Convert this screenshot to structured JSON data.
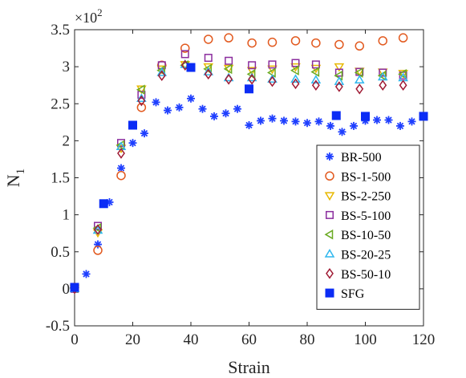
{
  "chart_data": {
    "type": "scatter",
    "xlabel": "Strain",
    "ylabel": "N",
    "ylabel_sub": "1",
    "multiplier": {
      "base": "×10",
      "exp": "2"
    },
    "xlim": [
      0,
      120
    ],
    "ylim": [
      -0.5,
      3.5
    ],
    "xticks": [
      0,
      20,
      40,
      60,
      80,
      100,
      120
    ],
    "yticks": [
      -0.5,
      0,
      0.5,
      1,
      1.5,
      2,
      2.5,
      3,
      3.5
    ],
    "xtick_labels": [
      "0",
      "20",
      "40",
      "60",
      "80",
      "100",
      "120"
    ],
    "ytick_labels": [
      "-0.5",
      "0",
      "0.5",
      "1",
      "1.5",
      "2",
      "2.5",
      "3",
      "3.5"
    ],
    "grid": false,
    "legend_position": "lower-right",
    "series": [
      {
        "name": "BR-500",
        "marker": "asterisk",
        "color": "#1f3fff",
        "points": [
          [
            0,
            0
          ],
          [
            4,
            0.2
          ],
          [
            8,
            0.6
          ],
          [
            12,
            1.17
          ],
          [
            16,
            1.63
          ],
          [
            20,
            1.97
          ],
          [
            24,
            2.1
          ],
          [
            28,
            2.52
          ],
          [
            32,
            2.41
          ],
          [
            36,
            2.45
          ],
          [
            40,
            2.57
          ],
          [
            44,
            2.43
          ],
          [
            48,
            2.33
          ],
          [
            52,
            2.37
          ],
          [
            56,
            2.43
          ],
          [
            60,
            2.21
          ],
          [
            64,
            2.27
          ],
          [
            68,
            2.3
          ],
          [
            72,
            2.27
          ],
          [
            76,
            2.26
          ],
          [
            80,
            2.24
          ],
          [
            84,
            2.26
          ],
          [
            88,
            2.2
          ],
          [
            92,
            2.12
          ],
          [
            96,
            2.2
          ],
          [
            100,
            2.27
          ],
          [
            104,
            2.28
          ],
          [
            108,
            2.28
          ],
          [
            112,
            2.2
          ],
          [
            116,
            2.26
          ]
        ]
      },
      {
        "name": "BS-1-500",
        "marker": "circle",
        "color": "#e2591e",
        "points": [
          [
            0,
            0.02
          ],
          [
            8,
            0.52
          ],
          [
            16,
            1.53
          ],
          [
            23,
            2.45
          ],
          [
            30,
            3.02
          ],
          [
            38,
            3.25
          ],
          [
            46,
            3.37
          ],
          [
            53,
            3.39
          ],
          [
            61,
            3.32
          ],
          [
            68,
            3.33
          ],
          [
            76,
            3.35
          ],
          [
            83,
            3.32
          ],
          [
            91,
            3.3
          ],
          [
            98,
            3.28
          ],
          [
            106,
            3.35
          ],
          [
            113,
            3.39
          ]
        ]
      },
      {
        "name": "BS-2-250",
        "marker": "triangle-down",
        "color": "#e8b800",
        "points": [
          [
            0,
            0.01
          ],
          [
            8,
            0.76
          ],
          [
            16,
            1.9
          ],
          [
            23,
            2.7
          ],
          [
            30,
            2.97
          ],
          [
            38,
            3.03
          ],
          [
            46,
            3.0
          ],
          [
            53,
            2.98
          ],
          [
            61,
            2.95
          ],
          [
            68,
            2.97
          ],
          [
            76,
            3.0
          ],
          [
            83,
            2.98
          ],
          [
            91,
            3.0
          ],
          [
            98,
            2.94
          ],
          [
            106,
            2.93
          ],
          [
            113,
            2.91
          ]
        ]
      },
      {
        "name": "BS-5-100",
        "marker": "square",
        "color": "#8b2d9e",
        "points": [
          [
            0,
            0.0
          ],
          [
            8,
            0.85
          ],
          [
            16,
            1.97
          ],
          [
            23,
            2.62
          ],
          [
            30,
            3.02
          ],
          [
            38,
            3.17
          ],
          [
            46,
            3.12
          ],
          [
            53,
            3.08
          ],
          [
            61,
            3.02
          ],
          [
            68,
            3.03
          ],
          [
            76,
            3.05
          ],
          [
            83,
            3.03
          ],
          [
            91,
            2.92
          ],
          [
            98,
            2.93
          ],
          [
            106,
            2.92
          ],
          [
            113,
            2.88
          ]
        ]
      },
      {
        "name": "BS-10-50",
        "marker": "triangle-left",
        "color": "#6aaa22",
        "points": [
          [
            0,
            0.01
          ],
          [
            8,
            0.82
          ],
          [
            16,
            1.94
          ],
          [
            23,
            2.69
          ],
          [
            30,
            2.95
          ],
          [
            38,
            3.02
          ],
          [
            46,
            2.97
          ],
          [
            53,
            2.97
          ],
          [
            61,
            2.9
          ],
          [
            68,
            2.92
          ],
          [
            76,
            2.95
          ],
          [
            83,
            2.93
          ],
          [
            91,
            2.88
          ],
          [
            98,
            2.92
          ],
          [
            106,
            2.88
          ],
          [
            113,
            2.9
          ]
        ]
      },
      {
        "name": "BS-20-25",
        "marker": "triangle-up",
        "color": "#2fb7ee",
        "points": [
          [
            0,
            0.0
          ],
          [
            8,
            0.79
          ],
          [
            16,
            1.92
          ],
          [
            23,
            2.57
          ],
          [
            30,
            2.92
          ],
          [
            38,
            3.03
          ],
          [
            46,
            2.93
          ],
          [
            53,
            2.85
          ],
          [
            61,
            2.85
          ],
          [
            68,
            2.83
          ],
          [
            76,
            2.83
          ],
          [
            83,
            2.82
          ],
          [
            91,
            2.8
          ],
          [
            98,
            2.82
          ],
          [
            106,
            2.86
          ],
          [
            113,
            2.85
          ]
        ]
      },
      {
        "name": "BS-50-10",
        "marker": "diamond",
        "color": "#a01c35",
        "points": [
          [
            0,
            0.0
          ],
          [
            8,
            0.8
          ],
          [
            16,
            1.83
          ],
          [
            23,
            2.54
          ],
          [
            30,
            2.88
          ],
          [
            38,
            3.02
          ],
          [
            46,
            2.9
          ],
          [
            53,
            2.83
          ],
          [
            61,
            2.83
          ],
          [
            68,
            2.8
          ],
          [
            76,
            2.77
          ],
          [
            83,
            2.75
          ],
          [
            91,
            2.73
          ],
          [
            98,
            2.7
          ],
          [
            106,
            2.75
          ],
          [
            113,
            2.75
          ]
        ]
      },
      {
        "name": "SFG",
        "marker": "filled-square",
        "color": "#0b2cf5",
        "points": [
          [
            0,
            0.02
          ],
          [
            10,
            1.15
          ],
          [
            20,
            2.21
          ],
          [
            40,
            2.99
          ],
          [
            60,
            2.7
          ],
          [
            90,
            2.34
          ],
          [
            100,
            2.33
          ],
          [
            120,
            2.33
          ]
        ]
      }
    ]
  }
}
